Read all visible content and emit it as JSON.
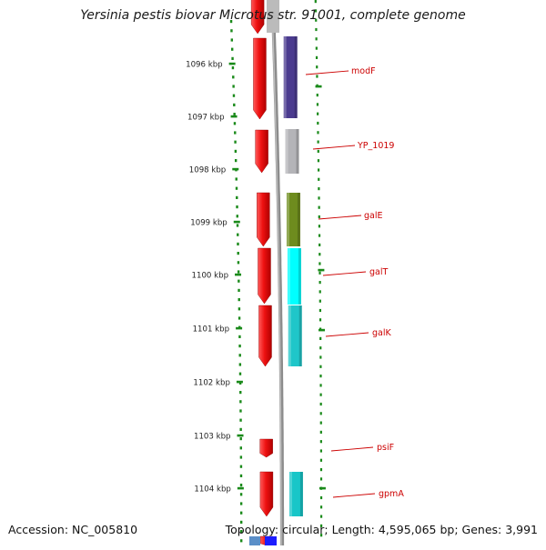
{
  "title": "Yersinia pestis biovar Microtus str. 91001, complete genome",
  "footer": {
    "accession": "Accession: NC_005810",
    "summary": "Topology: circular; Length: 4,595,065 bp; Genes: 3,991"
  },
  "map": {
    "ticks": [
      {
        "label": "1096 kbp"
      },
      {
        "label": "1097 kbp"
      },
      {
        "label": "1098 kbp"
      },
      {
        "label": "1099 kbp"
      },
      {
        "label": "1100 kbp"
      },
      {
        "label": "1101 kbp"
      },
      {
        "label": "1102 kbp"
      },
      {
        "label": "1103 kbp"
      },
      {
        "label": "1104 kbp"
      }
    ],
    "genes": [
      {
        "label": "modF",
        "color": "#4b3b8f"
      },
      {
        "label": "YP_1019",
        "color": "#b4b4b8"
      },
      {
        "label": "galE",
        "color": "#6e8c1e"
      },
      {
        "label": "galT",
        "color": "#00ffff"
      },
      {
        "label": "galK",
        "color": "#1fc6c9"
      },
      {
        "label": "psiF",
        "color": ""
      },
      {
        "label": "gpmA",
        "color": "#18c6c8"
      }
    ],
    "colors": {
      "orf": "#ee1111",
      "label": "#cc0000",
      "tick": "#1a8a1a",
      "backbone": "#8c8c8c"
    }
  }
}
